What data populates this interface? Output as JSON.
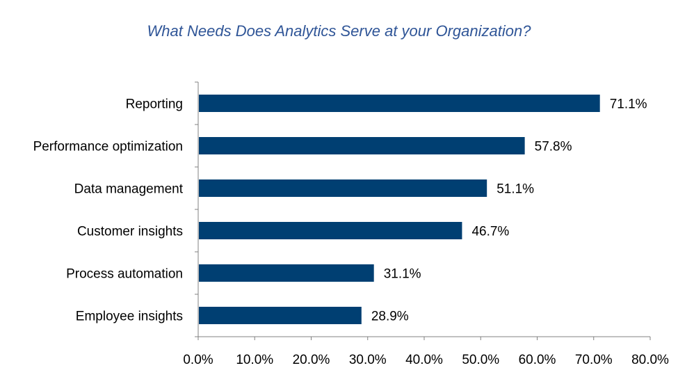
{
  "chart_data": {
    "type": "bar",
    "orientation": "horizontal",
    "title": "What Needs Does Analytics Serve at your Organization?",
    "categories": [
      "Reporting",
      "Performance optimization",
      "Data management",
      "Customer insights",
      "Process automation",
      "Employee insights"
    ],
    "values": [
      71.1,
      57.8,
      51.1,
      46.7,
      31.1,
      28.9
    ],
    "value_labels": [
      "71.1%",
      "57.8%",
      "51.1%",
      "46.7%",
      "31.1%",
      "28.9%"
    ],
    "xticks": [
      "0.0%",
      "10.0%",
      "20.0%",
      "30.0%",
      "40.0%",
      "50.0%",
      "60.0%",
      "70.0%",
      "80.0%"
    ],
    "xlim": [
      0,
      80
    ],
    "bar_color": "#003F72",
    "grid": false,
    "legend": "none"
  }
}
